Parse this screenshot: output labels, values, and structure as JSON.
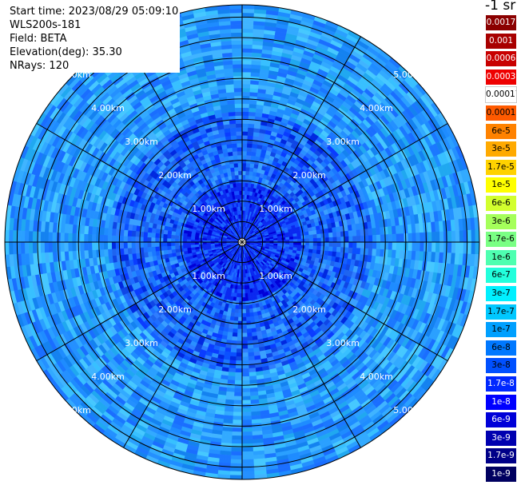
{
  "info": {
    "start_time": "Start time: 2023/08/29 05:09:10",
    "instrument": "WLS200s-181",
    "field": "Field: BETA",
    "elevation": "Elevation(deg): 35.30",
    "nrays": "NRays: 120"
  },
  "units": "-1 sr",
  "range_ring_labels": [
    "1.00km",
    "2.00km",
    "3.00km",
    "4.00km",
    "5.00km"
  ],
  "colorbar": [
    {
      "label": "0.0017",
      "color": "#8b0000"
    },
    {
      "label": "0.001",
      "color": "#a80000"
    },
    {
      "label": "0.0006",
      "color": "#c80000"
    },
    {
      "label": "0.0003",
      "color": "#ee0000"
    },
    {
      "label": "0.00017",
      "color": "#ffffff"
    },
    {
      "label": "0.0001",
      "color": "#ff5a00"
    },
    {
      "label": "6e-5",
      "color": "#ff8200"
    },
    {
      "label": "3e-5",
      "color": "#ffaa00"
    },
    {
      "label": "1.7e-5",
      "color": "#ffd200"
    },
    {
      "label": "1e-5",
      "color": "#ffff00"
    },
    {
      "label": "6e-6",
      "color": "#d2ff2e"
    },
    {
      "label": "3e-6",
      "color": "#a5ff5a"
    },
    {
      "label": "1.7e-6",
      "color": "#7aff84"
    },
    {
      "label": "1e-6",
      "color": "#4effb0"
    },
    {
      "label": "6e-7",
      "color": "#22ffdc"
    },
    {
      "label": "3e-7",
      "color": "#00f0ff"
    },
    {
      "label": "1.7e-7",
      "color": "#00c8ff"
    },
    {
      "label": "1e-7",
      "color": "#00a0ff"
    },
    {
      "label": "6e-8",
      "color": "#0078ff"
    },
    {
      "label": "3e-8",
      "color": "#0050ff"
    },
    {
      "label": "1.7e-8",
      "color": "#0028ff"
    },
    {
      "label": "1e-8",
      "color": "#0000ff"
    },
    {
      "label": "6e-9",
      "color": "#0000d8"
    },
    {
      "label": "3e-9",
      "color": "#0000b0"
    },
    {
      "label": "1.7e-9",
      "color": "#000088"
    },
    {
      "label": "1e-9",
      "color": "#000060"
    }
  ],
  "num_rays": 120,
  "num_range_gates": 60,
  "max_range_km": 5.8
}
